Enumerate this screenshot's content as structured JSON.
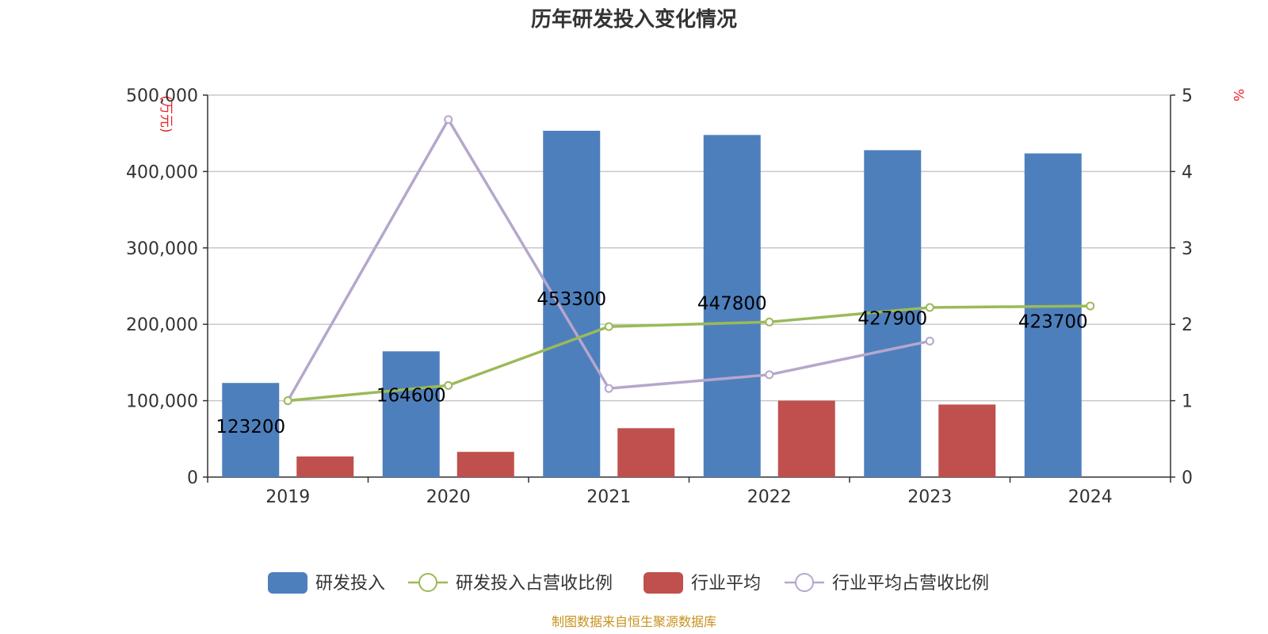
{
  "chart_data": {
    "type": "bar",
    "title": "历年研发投入变化情况",
    "categories": [
      "2019",
      "2020",
      "2021",
      "2022",
      "2023",
      "2024"
    ],
    "y_left": {
      "unit": "(万元)",
      "ticks": [
        "0",
        "100,000",
        "200,000",
        "300,000",
        "400,000",
        "500,000"
      ],
      "range": [
        0,
        500000
      ]
    },
    "y_right": {
      "unit": "%",
      "ticks": [
        "0",
        "1",
        "2",
        "3",
        "4",
        "5"
      ],
      "range": [
        0,
        5
      ]
    },
    "grid": true,
    "series": [
      {
        "name": "研发投入",
        "type": "bar",
        "axis": "left",
        "color": "#4e7fbd",
        "values": [
          123200,
          164600,
          453300,
          447800,
          427900,
          423700
        ],
        "labels": [
          "123200",
          "164600",
          "453300",
          "447800",
          "427900",
          "423700"
        ]
      },
      {
        "name": "研发投入占营收比例",
        "type": "line",
        "axis": "right",
        "color": "#9aba59",
        "values": [
          1.0,
          1.2,
          1.97,
          2.03,
          2.22,
          2.24
        ]
      },
      {
        "name": "行业平均",
        "type": "bar",
        "axis": "left",
        "color": "#c0504e",
        "values": [
          27000,
          33000,
          64000,
          100000,
          95000,
          null
        ]
      },
      {
        "name": "行业平均占营收比例",
        "type": "line",
        "axis": "right",
        "color": "#b5a7cc",
        "values": [
          1.0,
          4.68,
          1.16,
          1.34,
          1.78,
          null
        ]
      }
    ],
    "legend_position": "bottom",
    "source": "制图数据来自恒生聚源数据库"
  }
}
